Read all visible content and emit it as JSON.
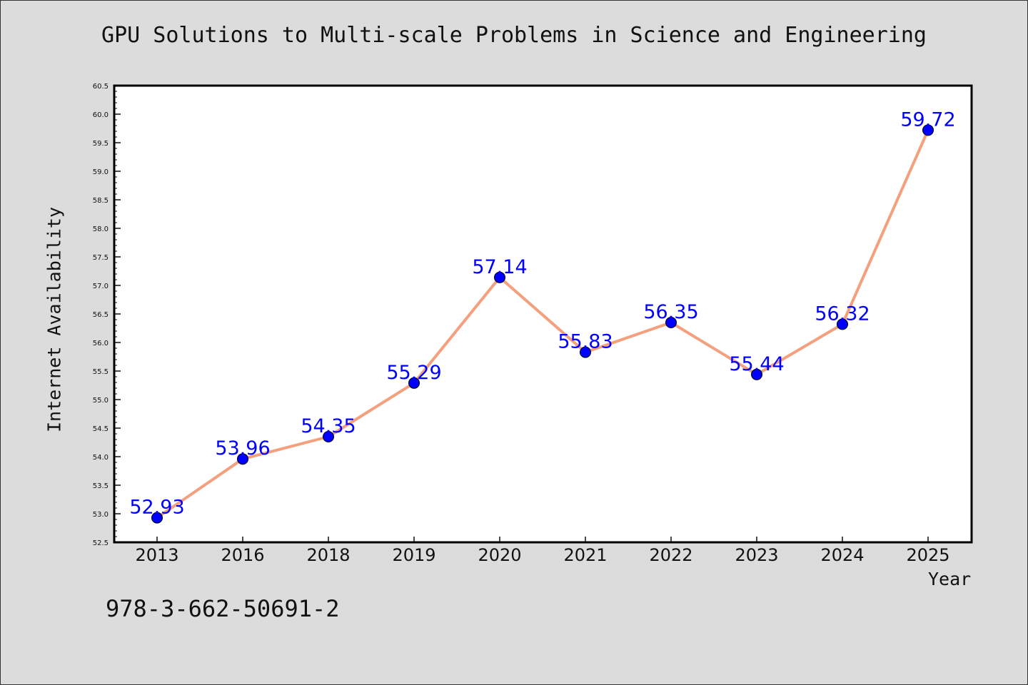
{
  "chart_data": {
    "type": "line",
    "title": "GPU Solutions to Multi-scale Problems in Science and Engineering",
    "xlabel": "Year",
    "ylabel": "Internet Availability",
    "categories": [
      "2013",
      "2016",
      "2018",
      "2019",
      "2020",
      "2021",
      "2022",
      "2023",
      "2024",
      "2025"
    ],
    "values": [
      52.93,
      53.96,
      54.35,
      55.29,
      57.14,
      55.83,
      56.35,
      55.44,
      56.32,
      59.72
    ],
    "data_labels": [
      "52.93",
      "53.96",
      "54.35",
      "55.29",
      "57.14",
      "55.83",
      "56.35",
      "55.44",
      "56.32",
      "59.72"
    ],
    "ylim": [
      52.5,
      60.5
    ],
    "yticks": [
      "52.5",
      "53.0",
      "53.5",
      "54.0",
      "54.5",
      "55.0",
      "55.5",
      "56.0",
      "56.5",
      "57.0",
      "57.5",
      "58.0",
      "58.5",
      "59.0",
      "59.5",
      "60.0",
      "60.5"
    ],
    "grid": false,
    "line_color": "#f4a07e",
    "marker_color": "#0000ff",
    "label_color": "#0000ff"
  },
  "footer_text": "978-3-662-50691-2"
}
